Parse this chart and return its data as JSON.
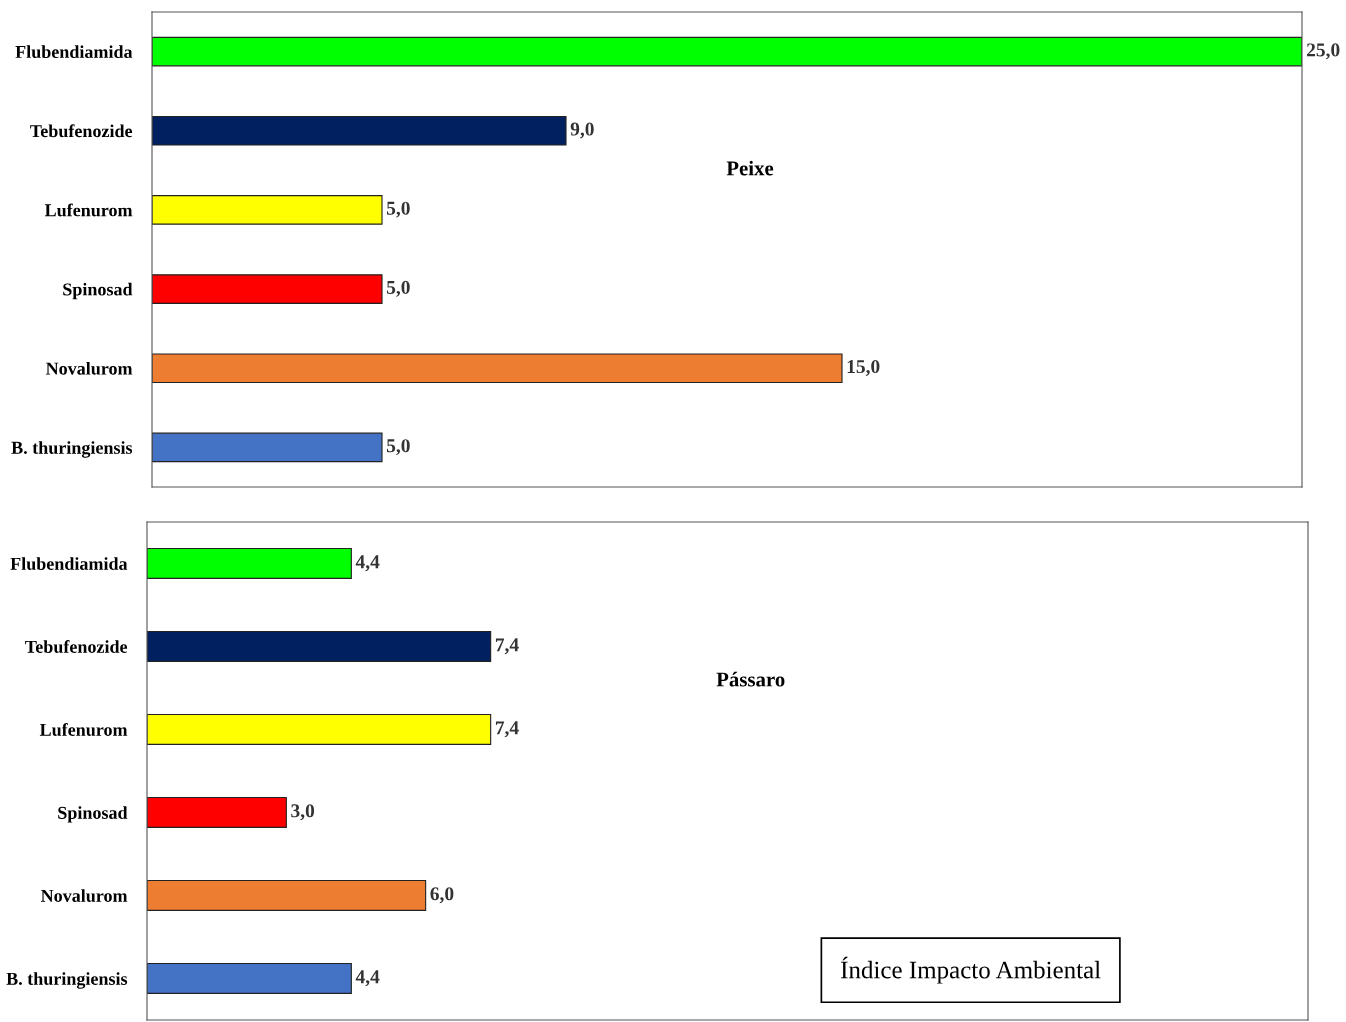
{
  "chart_data": [
    {
      "type": "bar",
      "orientation": "horizontal",
      "title": "Peixe",
      "categories": [
        "Flubendiamida",
        "Tebufenozide",
        "Lufenurom",
        "Spinosad",
        "Novalurom",
        "B. thuringiensis"
      ],
      "values": [
        25.0,
        9.0,
        5.0,
        5.0,
        15.0,
        5.0
      ],
      "colors": [
        "#00ff00",
        "#002060",
        "#ffff00",
        "#ff0000",
        "#ed7d31",
        "#4472c4"
      ],
      "value_labels": [
        "25,0",
        "9,0",
        "5,0",
        "5,0",
        "15,0",
        "5,0"
      ],
      "xlim": [
        0,
        25
      ],
      "tick_labels": "y",
      "grid": false,
      "legend": false
    },
    {
      "type": "bar",
      "orientation": "horizontal",
      "title": "Pássaro",
      "categories": [
        "Flubendiamida",
        "Tebufenozide",
        "Lufenurom",
        "Spinosad",
        "Novalurom",
        "B. thuringiensis"
      ],
      "values": [
        4.4,
        7.4,
        7.4,
        3.0,
        6.0,
        4.4
      ],
      "colors": [
        "#00ff00",
        "#002060",
        "#ffff00",
        "#ff0000",
        "#ed7d31",
        "#4472c4"
      ],
      "value_labels": [
        "4,4",
        "7,4",
        "7,4",
        "3,0",
        "6,0",
        "4,4"
      ],
      "xlim": [
        0,
        25
      ],
      "tick_labels": "y",
      "grid": false,
      "legend": false,
      "annotations": [
        "Índice Impacto Ambiental"
      ]
    }
  ]
}
